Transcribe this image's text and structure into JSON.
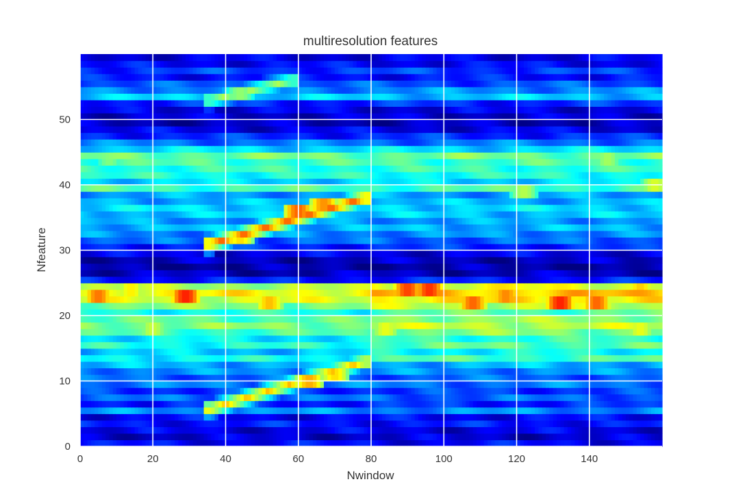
{
  "chart_data": {
    "type": "heatmap",
    "title": "multiresolution features",
    "xlabel": "Nwindow",
    "ylabel": "Nfeature",
    "xlim": [
      0,
      160
    ],
    "ylim": [
      0,
      60
    ],
    "n_columns": 160,
    "n_rows": 60,
    "x_ticks": [
      0,
      20,
      40,
      60,
      80,
      100,
      120,
      140
    ],
    "y_ticks": [
      0,
      10,
      20,
      30,
      40,
      50
    ],
    "grid": true,
    "colormap": "jet",
    "value_range": [
      0,
      1
    ],
    "row_levels": [
      0.12,
      0.08,
      0.1,
      0.14,
      0.12,
      0.26,
      0.16,
      0.22,
      0.18,
      0.24,
      0.22,
      0.26,
      0.3,
      0.38,
      0.32,
      0.4,
      0.36,
      0.44,
      0.5,
      0.46,
      0.4,
      0.5,
      0.58,
      0.62,
      0.54,
      0.14,
      0.06,
      0.04,
      0.06,
      0.1,
      0.16,
      0.22,
      0.26,
      0.3,
      0.28,
      0.32,
      0.34,
      0.3,
      0.28,
      0.44,
      0.34,
      0.4,
      0.42,
      0.44,
      0.48,
      0.34,
      0.24,
      0.16,
      0.1,
      0.06,
      0.08,
      0.1,
      0.16,
      0.32,
      0.26,
      0.2,
      0.14,
      0.18,
      0.12,
      0.1
    ],
    "tracks": [
      {
        "x": [
          36,
          78
        ],
        "y": [
          5.8,
          13
        ],
        "peak": 0.7
      },
      {
        "x": [
          36,
          78
        ],
        "y": [
          31,
          38
        ],
        "peak": 0.8
      },
      {
        "x": [
          36,
          58
        ],
        "y": [
          53,
          56
        ],
        "peak": 0.55
      }
    ],
    "hotspots": [
      {
        "x": 5,
        "y": 23,
        "v": 0.88
      },
      {
        "x": 14,
        "y": 24,
        "v": 0.74
      },
      {
        "x": 29,
        "y": 23,
        "v": 0.98
      },
      {
        "x": 52,
        "y": 22,
        "v": 0.8
      },
      {
        "x": 60,
        "y": 36,
        "v": 0.9
      },
      {
        "x": 67,
        "y": 37,
        "v": 0.85
      },
      {
        "x": 90,
        "y": 24,
        "v": 0.94
      },
      {
        "x": 96,
        "y": 24,
        "v": 0.96
      },
      {
        "x": 108,
        "y": 22,
        "v": 0.9
      },
      {
        "x": 117,
        "y": 23,
        "v": 0.86
      },
      {
        "x": 132,
        "y": 22,
        "v": 0.98
      },
      {
        "x": 142,
        "y": 22,
        "v": 0.9
      },
      {
        "x": 84,
        "y": 18,
        "v": 0.7
      },
      {
        "x": 154,
        "y": 18,
        "v": 0.7
      },
      {
        "x": 154,
        "y": 24,
        "v": 0.78
      },
      {
        "x": 145,
        "y": 44,
        "v": 0.62
      },
      {
        "x": 158,
        "y": 40,
        "v": 0.68
      },
      {
        "x": 122,
        "y": 39,
        "v": 0.64
      },
      {
        "x": 8,
        "y": 44,
        "v": 0.58
      },
      {
        "x": 20,
        "y": 18,
        "v": 0.66
      },
      {
        "x": 63,
        "y": 10,
        "v": 0.82
      },
      {
        "x": 70,
        "y": 11,
        "v": 0.76
      },
      {
        "x": 44,
        "y": 32,
        "v": 0.76
      },
      {
        "x": 44,
        "y": 54,
        "v": 0.6
      }
    ]
  }
}
